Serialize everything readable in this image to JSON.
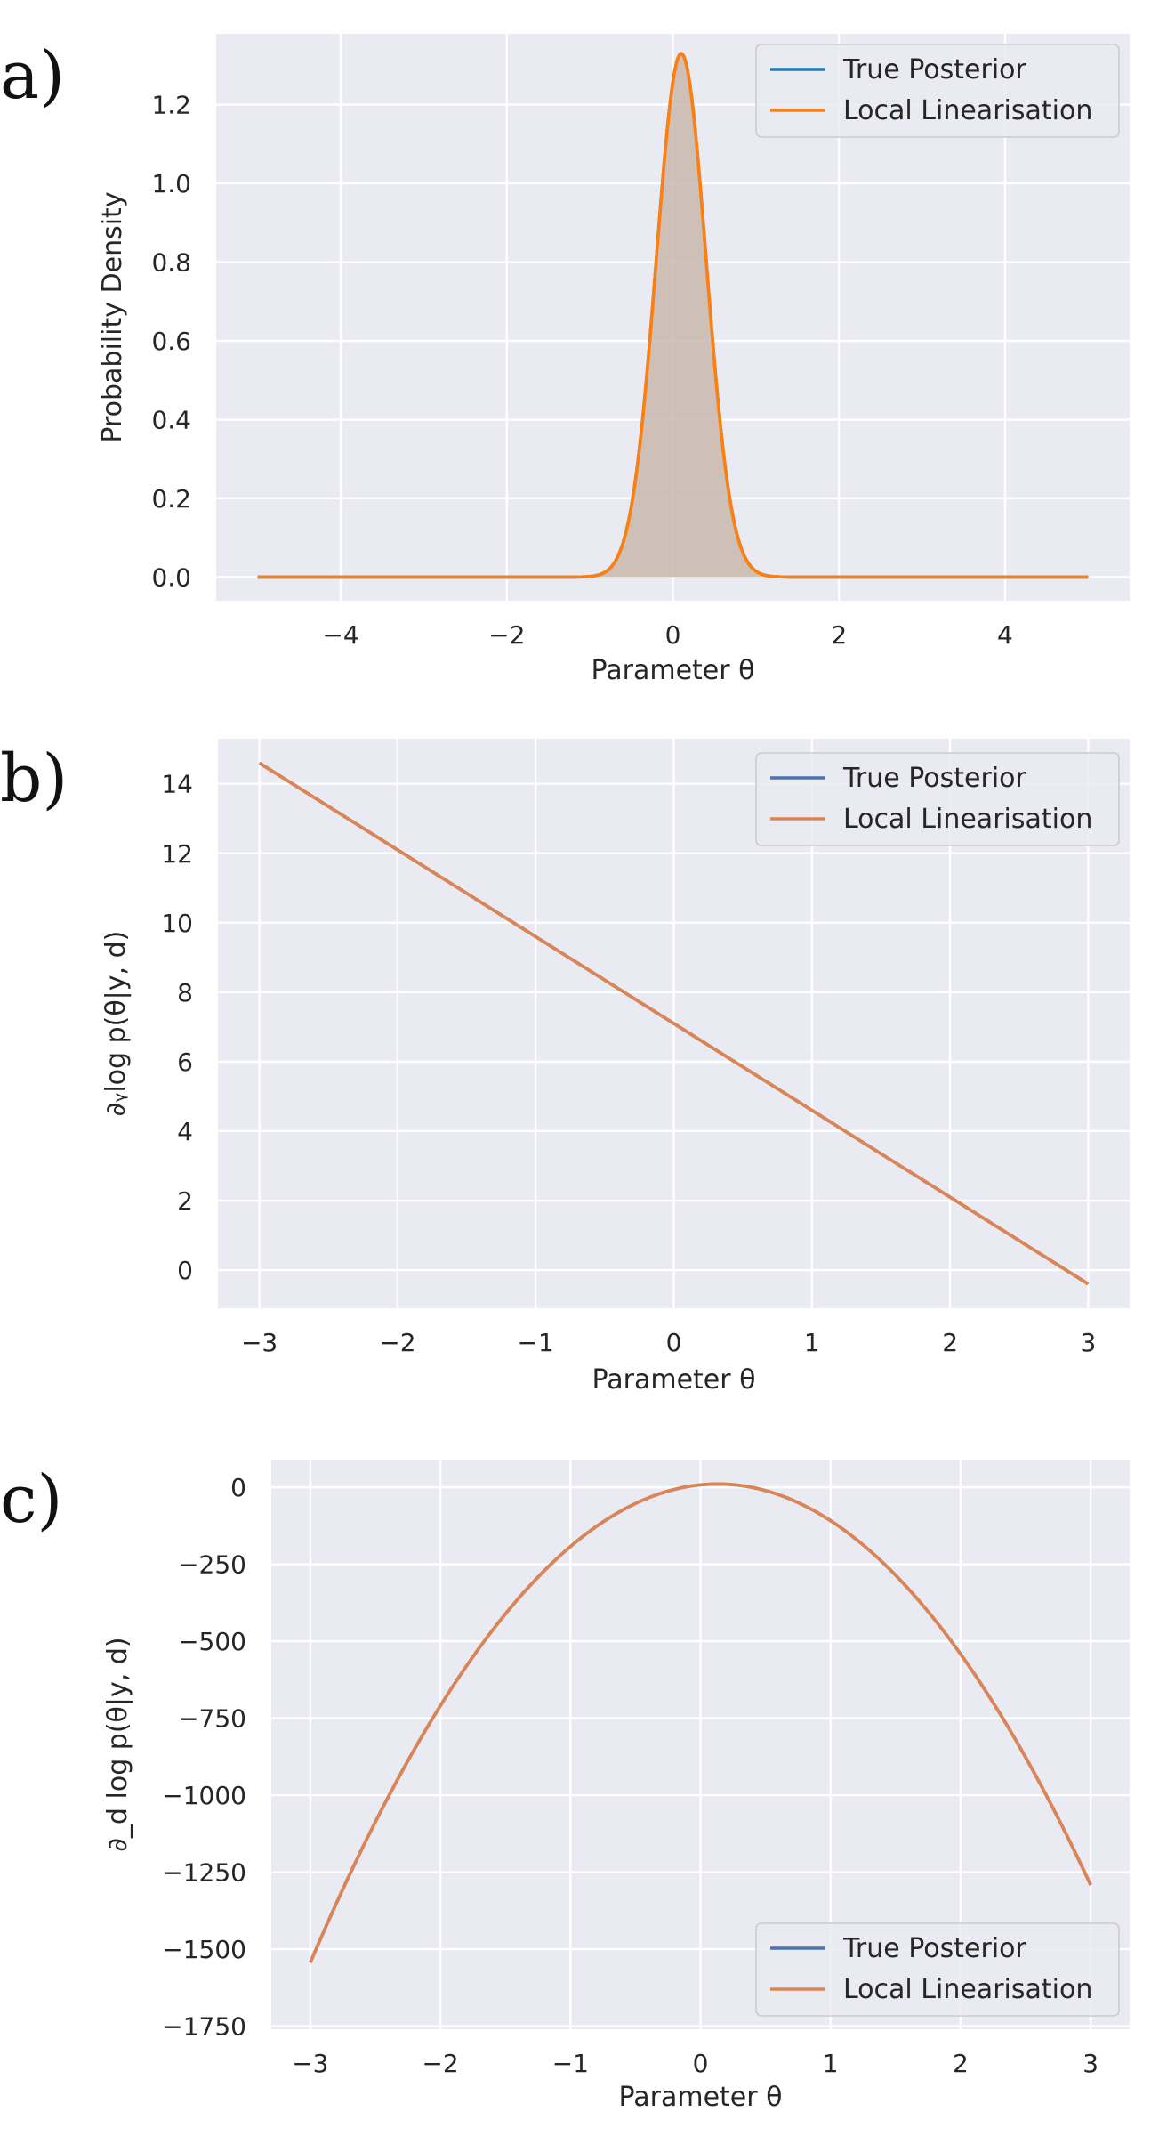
{
  "chart_data": [
    {
      "panel": "a)",
      "type": "line",
      "xlabel": "Parameter θ",
      "ylabel": "Probability Density",
      "xlim": [
        -5.5,
        5.5
      ],
      "ylim": [
        -0.06,
        1.38
      ],
      "xticks": [
        -4,
        -2,
        0,
        2,
        4
      ],
      "xtick_labels": [
        "−4",
        "−2",
        "0",
        "2",
        "4"
      ],
      "yticks": [
        0.0,
        0.2,
        0.4,
        0.6,
        0.8,
        1.0,
        1.2
      ],
      "ytick_labels": [
        "0.0",
        "0.2",
        "0.4",
        "0.6",
        "0.8",
        "1.0",
        "1.2"
      ],
      "grid": true,
      "legend_position": "top-right",
      "fill_under": true,
      "fill_color": "#c9b9ad",
      "series": [
        {
          "name": "True Posterior",
          "color": "#1f77b4",
          "curve": {
            "kind": "gaussian",
            "mean": 0.1,
            "std": 0.3,
            "x_range": [
              -5,
              5
            ]
          }
        },
        {
          "name": "Local Linearisation",
          "color": "#ff7f0e",
          "curve": {
            "kind": "gaussian",
            "mean": 0.1,
            "std": 0.3,
            "x_range": [
              -5,
              5
            ]
          }
        }
      ]
    },
    {
      "panel": "b)",
      "type": "line",
      "xlabel": "Parameter θ",
      "ylabel": "∂ᵧlog p(θ|y, d)",
      "xlim": [
        -3.3,
        3.3
      ],
      "ylim": [
        -1.1,
        15.3
      ],
      "xticks": [
        -3,
        -2,
        -1,
        0,
        1,
        2,
        3
      ],
      "xtick_labels": [
        "−3",
        "−2",
        "−1",
        "0",
        "1",
        "2",
        "3"
      ],
      "yticks": [
        0,
        2,
        4,
        6,
        8,
        10,
        12,
        14
      ],
      "ytick_labels": [
        "0",
        "2",
        "4",
        "6",
        "8",
        "10",
        "12",
        "14"
      ],
      "grid": true,
      "legend_position": "top-right",
      "fill_under": false,
      "series": [
        {
          "name": "True Posterior",
          "color": "#4c72b0",
          "curve": {
            "kind": "poly",
            "coeffs": [
              7.1,
              -2.5
            ],
            "x_range": [
              -3,
              3
            ]
          }
        },
        {
          "name": "Local Linearisation",
          "color": "#dd8452",
          "curve": {
            "kind": "poly",
            "coeffs": [
              7.1,
              -2.5
            ],
            "x_range": [
              -3,
              3
            ]
          }
        }
      ]
    },
    {
      "panel": "c)",
      "type": "line",
      "xlabel": "Parameter θ",
      "ylabel": "∂_d log p(θ|y, d)",
      "xlim": [
        -3.3,
        3.3
      ],
      "ylim": [
        -1760,
        90
      ],
      "xticks": [
        -3,
        -2,
        -1,
        0,
        1,
        2,
        3
      ],
      "xtick_labels": [
        "−3",
        "−2",
        "−1",
        "0",
        "1",
        "2",
        "3"
      ],
      "yticks": [
        0,
        -250,
        -500,
        -750,
        -1000,
        -1250,
        -1500,
        -1750
      ],
      "ytick_labels": [
        "0",
        "−250",
        "−500",
        "−750",
        "−1000",
        "−1250",
        "−1500",
        "−1750"
      ],
      "grid": true,
      "legend_position": "bottom-right",
      "fill_under": false,
      "series": [
        {
          "name": "True Posterior",
          "color": "#4c72b0",
          "curve": {
            "kind": "poly",
            "coeffs": [
              8,
              42,
              -158.4
            ],
            "x_range": [
              -3,
              3
            ]
          }
        },
        {
          "name": "Local Linearisation",
          "color": "#dd8452",
          "curve": {
            "kind": "poly",
            "coeffs": [
              8,
              42,
              -158.4
            ],
            "x_range": [
              -3,
              3
            ]
          }
        }
      ]
    }
  ]
}
